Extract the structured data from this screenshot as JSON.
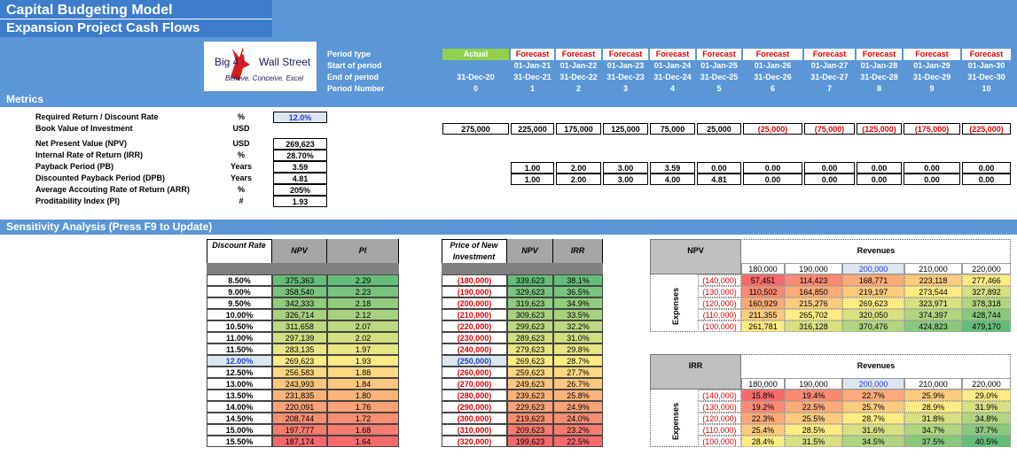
{
  "header": {
    "title": "Capital Budgeting Model",
    "subtitle": "Expansion Project Cash Flows",
    "metrics_heading": "Metrics",
    "sensitivity_heading": "Sensitivity Analysis (Press F9 to Update)"
  },
  "logo": {
    "left": "Big 4",
    "right": "Wall Street",
    "tagline": "Believe, Conceive, Excel"
  },
  "timeline": {
    "labels": [
      "Period type",
      "Start of period",
      "End of period",
      "Period Number"
    ],
    "periods": [
      {
        "type": "Actual",
        "end": "31-Dec-20",
        "number": "0"
      },
      {
        "type": "Forecast",
        "start": "01-Jan-21",
        "end": "31-Dec-21",
        "number": "1"
      },
      {
        "type": "Forecast",
        "start": "01-Jan-22",
        "end": "31-Dec-22",
        "number": "2"
      },
      {
        "type": "Forecast",
        "start": "01-Jan-23",
        "end": "31-Dec-23",
        "number": "3"
      },
      {
        "type": "Forecast",
        "start": "01-Jan-24",
        "end": "31-Dec-24",
        "number": "4"
      },
      {
        "type": "Forecast",
        "start": "01-Jan-25",
        "end": "31-Dec-25",
        "number": "5"
      },
      {
        "type": "Forecast",
        "start": "01-Jan-26",
        "end": "31-Dec-26",
        "number": "6"
      },
      {
        "type": "Forecast",
        "start": "01-Jan-27",
        "end": "31-Dec-27",
        "number": "7"
      },
      {
        "type": "Forecast",
        "start": "01-Jan-28",
        "end": "31-Dec-28",
        "number": "8"
      },
      {
        "type": "Forecast",
        "start": "01-Jan-29",
        "end": "31-Dec-29",
        "number": "9"
      },
      {
        "type": "Forecast",
        "start": "01-Jan-30",
        "end": "31-Dec-30",
        "number": "10"
      }
    ]
  },
  "metrics": {
    "rows": [
      {
        "label": "Required Return / Discount Rate",
        "unit": "%",
        "value": "12.0%"
      },
      {
        "label": "Book Value of Investment",
        "unit": "USD"
      },
      {
        "label": "Net Present Value (NPV)",
        "unit": "USD",
        "value": "269,623"
      },
      {
        "label": "Internal Rate of Return (IRR)",
        "unit": "%",
        "value": "28.70%"
      },
      {
        "label": "Payback Period (PB)",
        "unit": "Years",
        "value": "3.59"
      },
      {
        "label": "Discounted Payback Period (DPB)",
        "unit": "Years",
        "value": "4.81"
      },
      {
        "label": "Average Accouting Rate of Return (ARR)",
        "unit": "%",
        "value": "205%"
      },
      {
        "label": "Proditability Index (PI)",
        "unit": "#",
        "value": "1.93"
      }
    ],
    "book_value": [
      "275,000",
      "225,000",
      "175,000",
      "125,000",
      "75,000",
      "25,000",
      "(25,000)",
      "(75,000)",
      "(125,000)",
      "(175,000)",
      "(225,000)"
    ],
    "payback": [
      "1.00",
      "2.00",
      "3.00",
      "3.59",
      "0.00",
      "0.00",
      "0.00",
      "0.00",
      "0.00",
      "0.00"
    ],
    "discounted_payback": [
      "1.00",
      "2.00",
      "3.00",
      "4.00",
      "4.81",
      "0.00",
      "0.00",
      "0.00",
      "0.00",
      "0.00"
    ]
  },
  "sensitivity": {
    "discount_rate": {
      "headers": [
        "Discount Rate",
        "NPV",
        "PI"
      ],
      "rows": [
        [
          "8.50%",
          "375,363",
          "2.29"
        ],
        [
          "9.00%",
          "358,540",
          "2.23"
        ],
        [
          "9.50%",
          "342,333",
          "2.18"
        ],
        [
          "10.00%",
          "326,714",
          "2.12"
        ],
        [
          "10.50%",
          "311,658",
          "2.07"
        ],
        [
          "11.00%",
          "297,139",
          "2.02"
        ],
        [
          "11.50%",
          "283,135",
          "1.97"
        ],
        [
          "12.00%",
          "269,623",
          "1.93"
        ],
        [
          "12.50%",
          "256,583",
          "1.88"
        ],
        [
          "13.00%",
          "243,993",
          "1.84"
        ],
        [
          "13.50%",
          "231,835",
          "1.80"
        ],
        [
          "14.00%",
          "220,091",
          "1.76"
        ],
        [
          "14.50%",
          "208,744",
          "1.72"
        ],
        [
          "15.00%",
          "197,777",
          "1.68"
        ],
        [
          "15.50%",
          "187,174",
          "1.64"
        ]
      ]
    },
    "price": {
      "headers": [
        "Price of New Investment",
        "NPV",
        "IRR"
      ],
      "rows": [
        [
          "(180,000)",
          "339,623",
          "38.1%"
        ],
        [
          "(190,000)",
          "329,623",
          "36.5%"
        ],
        [
          "(200,000)",
          "319,623",
          "34.9%"
        ],
        [
          "(210,000)",
          "309,623",
          "33.5%"
        ],
        [
          "(220,000)",
          "299,623",
          "32.2%"
        ],
        [
          "(230,000)",
          "289,623",
          "31.0%"
        ],
        [
          "(240,000)",
          "279,623",
          "29.8%"
        ],
        [
          "(250,000)",
          "269,623",
          "28.7%"
        ],
        [
          "(260,000)",
          "259,623",
          "27.7%"
        ],
        [
          "(270,000)",
          "249,623",
          "26.7%"
        ],
        [
          "(280,000)",
          "239,623",
          "25.8%"
        ],
        [
          "(290,000)",
          "229,623",
          "24.9%"
        ],
        [
          "(300,000)",
          "219,623",
          "24.0%"
        ],
        [
          "(310,000)",
          "209,623",
          "23.2%"
        ],
        [
          "(320,000)",
          "199,623",
          "22.5%"
        ]
      ]
    },
    "npv_grid": {
      "title": "NPV",
      "col_header": "Revenues",
      "row_header": "Expenses",
      "columns": [
        "180,000",
        "190,000",
        "200,000",
        "210,000",
        "220,000"
      ],
      "rows": [
        {
          "label": "(140,000)",
          "values": [
            "57,451",
            "114,423",
            "168,771",
            "223,118",
            "277,466"
          ]
        },
        {
          "label": "(130,000)",
          "values": [
            "110,502",
            "164,850",
            "219,197",
            "273,544",
            "327,892"
          ]
        },
        {
          "label": "(120,000)",
          "values": [
            "160,929",
            "215,276",
            "269,623",
            "323,971",
            "378,318"
          ]
        },
        {
          "label": "(110,000)",
          "values": [
            "211,355",
            "265,702",
            "320,050",
            "374,397",
            "428,744"
          ]
        },
        {
          "label": "(100,000)",
          "values": [
            "261,781",
            "316,128",
            "370,476",
            "424,823",
            "479,170"
          ]
        }
      ]
    },
    "irr_grid": {
      "title": "IRR",
      "col_header": "Revenues",
      "row_header": "Expenses",
      "columns": [
        "180,000",
        "190,000",
        "200,000",
        "210,000",
        "220,000"
      ],
      "rows": [
        {
          "label": "(140,000)",
          "values": [
            "15.8%",
            "19.4%",
            "22.7%",
            "25.9%",
            "29.0%"
          ]
        },
        {
          "label": "(130,000)",
          "values": [
            "19.2%",
            "22.5%",
            "25.7%",
            "28.9%",
            "31.9%"
          ]
        },
        {
          "label": "(120,000)",
          "values": [
            "22.3%",
            "25.5%",
            "28.7%",
            "31.8%",
            "34.8%"
          ]
        },
        {
          "label": "(110,000)",
          "values": [
            "25.4%",
            "28.5%",
            "31.6%",
            "34.7%",
            "37.7%"
          ]
        },
        {
          "label": "(100,000)",
          "values": [
            "28.4%",
            "31.5%",
            "34.5%",
            "37.5%",
            "40.5%"
          ]
        }
      ]
    }
  }
}
